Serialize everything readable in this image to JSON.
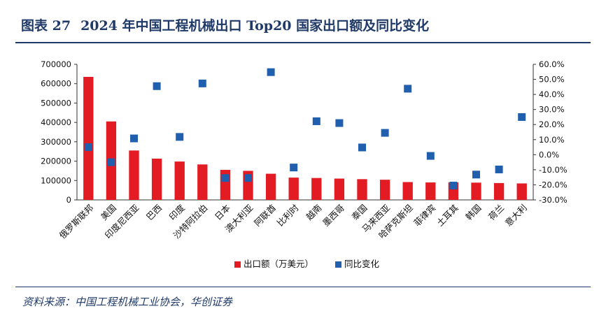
{
  "header": {
    "prefix": "图表 27",
    "title": "2024 年中国工程机械出口 Top20 国家出口额及同比变化"
  },
  "source": "资料来源：中国工程机械工业协会，华创证券",
  "colors": {
    "bar": "#e31b23",
    "marker": "#1f5fad",
    "accent": "#1f3a68"
  },
  "chart_data": {
    "type": "bar",
    "categories": [
      "俄罗斯联邦",
      "美国",
      "印度尼西亚",
      "巴西",
      "印度",
      "沙特阿拉伯",
      "日本",
      "澳大利亚",
      "阿联酋",
      "比利时",
      "越南",
      "墨西哥",
      "泰国",
      "马来西亚",
      "哈萨克斯坦",
      "菲律宾",
      "土耳其",
      "韩国",
      "荷兰",
      "意大利"
    ],
    "series": [
      {
        "name": "出口额（万美元）",
        "type": "bar",
        "axis": "left",
        "values": [
          635000,
          405000,
          255000,
          213000,
          198000,
          183000,
          155000,
          150000,
          135000,
          115000,
          113000,
          110000,
          107000,
          104000,
          92000,
          90000,
          90000,
          89000,
          87000,
          85000
        ]
      },
      {
        "name": "同比变化",
        "type": "scatter",
        "axis": "right",
        "values": [
          5.0,
          -5.0,
          10.8,
          45.5,
          11.8,
          47.3,
          -15.5,
          -15.5,
          54.8,
          -8.5,
          22.2,
          21.0,
          4.8,
          14.5,
          43.8,
          -0.8,
          -20.5,
          -13.2,
          -9.8,
          25.0
        ]
      }
    ],
    "y_left": {
      "min": 0,
      "max": 700000,
      "ticks": [
        "0",
        "100000",
        "200000",
        "300000",
        "400000",
        "500000",
        "600000",
        "700000"
      ]
    },
    "y_right": {
      "min": -30,
      "max": 60,
      "ticks": [
        "-30.0%",
        "-20.0%",
        "-10.0%",
        "0.0%",
        "10.0%",
        "20.0%",
        "30.0%",
        "40.0%",
        "50.0%",
        "60.0%"
      ]
    },
    "grid": false,
    "legend_position": "bottom"
  }
}
